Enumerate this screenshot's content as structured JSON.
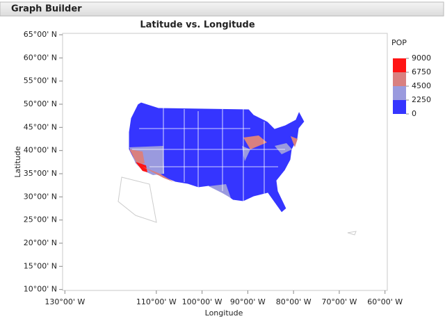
{
  "window": {
    "title": "Graph Builder"
  },
  "chart_data": {
    "type": "map",
    "title": "Latitude vs. Longitude",
    "x_label": "Longitude",
    "y_label": "Latitude",
    "xlim": [
      -130.5,
      -59.5
    ],
    "ylim": [
      9.8,
      65.3
    ],
    "xticks": [
      {
        "value": -130,
        "label": "130°00' W"
      },
      {
        "value": -110,
        "label": "110°00' W"
      },
      {
        "value": -100,
        "label": "100°00' W"
      },
      {
        "value": -90,
        "label": "90°00' W"
      },
      {
        "value": -80,
        "label": "80°00' W"
      },
      {
        "value": -70,
        "label": "70°00' W"
      },
      {
        "value": -60,
        "label": "60°00' W"
      }
    ],
    "yticks": [
      {
        "value": 65,
        "label": "65°00' N"
      },
      {
        "value": 60,
        "label": "60°00' N"
      },
      {
        "value": 55,
        "label": "55°00' N"
      },
      {
        "value": 50,
        "label": "50°00' N"
      },
      {
        "value": 45,
        "label": "45°00' N"
      },
      {
        "value": 40,
        "label": "40°00' N"
      },
      {
        "value": 35,
        "label": "35°00' N"
      },
      {
        "value": 30,
        "label": "30°00' N"
      },
      {
        "value": 25,
        "label": "25°00' N"
      },
      {
        "value": 20,
        "label": "20°00' N"
      },
      {
        "value": 15,
        "label": "15°00' N"
      },
      {
        "value": 10,
        "label": "10°00' N"
      }
    ],
    "legend": {
      "title": "POP",
      "ticks": [
        9000,
        6750,
        4500,
        2250,
        0
      ],
      "colors": [
        "#ff1414",
        "#d98080",
        "#9a9ade",
        "#3535ff"
      ]
    }
  }
}
